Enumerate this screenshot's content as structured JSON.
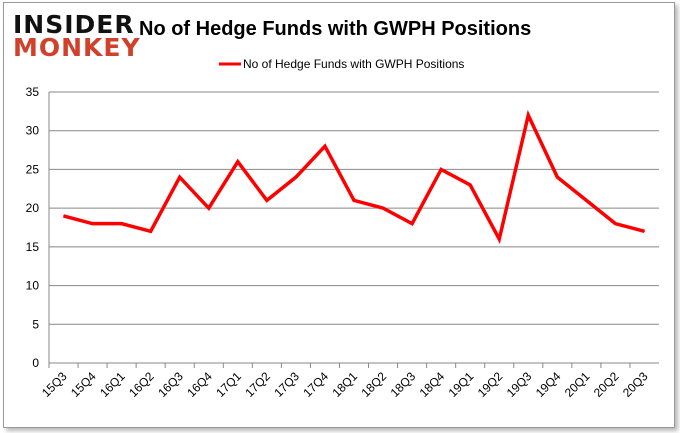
{
  "logo": {
    "line1": "INSIDER",
    "line2": "MONKEY"
  },
  "chart_data": {
    "type": "line",
    "title": "No of Hedge Funds with GWPH Positions",
    "xlabel": "",
    "ylabel": "",
    "ylim": [
      0,
      35
    ],
    "yticks": [
      0,
      5,
      10,
      15,
      20,
      25,
      30,
      35
    ],
    "grid": true,
    "legend_position": "top-center",
    "categories": [
      "15Q3",
      "15Q4",
      "16Q1",
      "16Q2",
      "16Q3",
      "16Q4",
      "17Q1",
      "17Q2",
      "17Q3",
      "17Q4",
      "18Q1",
      "18Q2",
      "18Q3",
      "18Q4",
      "19Q1",
      "19Q2",
      "19Q3",
      "19Q4",
      "20Q1",
      "20Q2",
      "20Q3"
    ],
    "series": [
      {
        "name": "No of Hedge Funds with GWPH Positions",
        "color": "#ff0000",
        "values": [
          19,
          18,
          18,
          17,
          24,
          20,
          26,
          21,
          24,
          28,
          21,
          20,
          18,
          25,
          23,
          16,
          32,
          24,
          21,
          18,
          17
        ]
      }
    ]
  }
}
